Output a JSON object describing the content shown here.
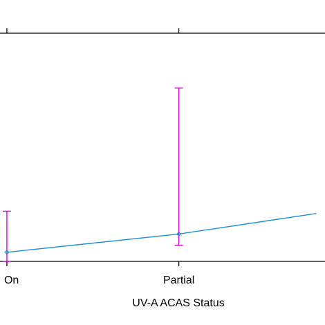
{
  "chart_data": {
    "type": "line",
    "categories": [
      "On",
      "Partial",
      ""
    ],
    "x": [
      0,
      1,
      1.8
    ],
    "series": [
      {
        "values": [
          0.02,
          0.06,
          0.105
        ],
        "ci_lower": [
          0.0,
          0.035,
          null
        ],
        "ci_upper": [
          0.11,
          0.38,
          null
        ],
        "line_color": "#1f8fd6",
        "errorbar_color": "#e000e0"
      }
    ],
    "xlabel": "UV-A ACAS Status",
    "ylabel": "",
    "xlim": [
      -0.04,
      1.85
    ],
    "ylim": [
      0.0,
      0.5
    ],
    "grid": false
  }
}
